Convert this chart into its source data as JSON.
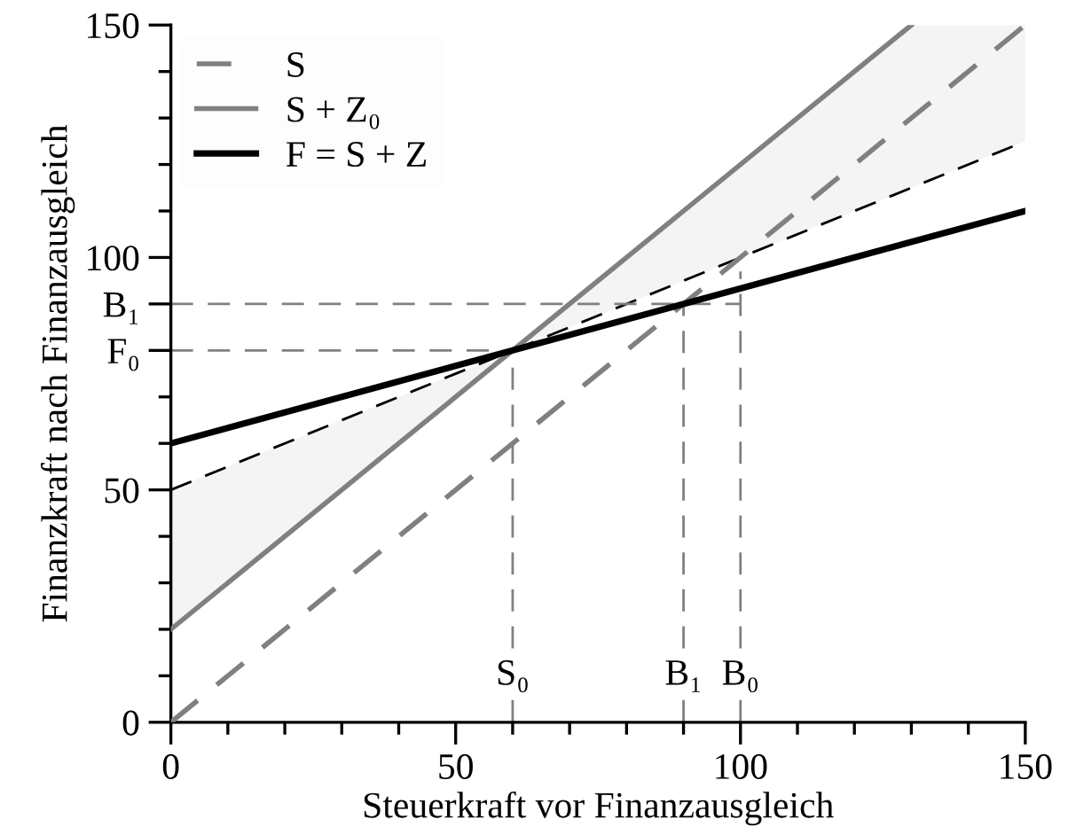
{
  "chart_data": {
    "type": "line",
    "xlabel": "Steuerkraft vor Finanzausgleich",
    "ylabel": "Finanzkraft nach Finanzausgleich",
    "xlim": [
      0,
      150
    ],
    "ylim": [
      0,
      150
    ],
    "xticks": [
      0,
      {
        "value": 10,
        "label": null
      },
      {
        "value": 20,
        "label": null
      },
      {
        "value": 30,
        "label": null
      },
      {
        "value": 40,
        "label": null
      },
      50,
      {
        "value": 60,
        "label": null
      },
      {
        "value": 70,
        "label": null
      },
      {
        "value": 80,
        "label": null
      },
      {
        "value": 90,
        "label": null
      },
      100,
      {
        "value": 110,
        "label": null
      },
      {
        "value": 120,
        "label": null
      },
      {
        "value": 130,
        "label": null
      },
      {
        "value": 140,
        "label": null
      },
      150
    ],
    "yticks": [
      0,
      {
        "value": 10,
        "label": null
      },
      {
        "value": 20,
        "label": null
      },
      {
        "value": 30,
        "label": null
      },
      {
        "value": 40,
        "label": null
      },
      50,
      {
        "value": 60,
        "label": null
      },
      {
        "value": 70,
        "label": null
      },
      {
        "value": 80,
        "label": "F₀"
      },
      {
        "value": 90,
        "label": "B₁"
      },
      100,
      {
        "value": 110,
        "label": null
      },
      {
        "value": 120,
        "label": null
      },
      {
        "value": 130,
        "label": null
      },
      {
        "value": 140,
        "label": null
      },
      150
    ],
    "grid": false,
    "legend": "top left",
    "marker": "none",
    "series": [
      {
        "name": "S",
        "color": "#808080",
        "line_style": "dashed",
        "x": [
          0,
          150
        ],
        "values": [
          0,
          150
        ]
      },
      {
        "name": "S + Z₀",
        "color": "#808080",
        "line_style": "solid",
        "x": [
          0,
          130
        ],
        "values": [
          20,
          150
        ]
      },
      {
        "name": "F = S + Z",
        "color": "#000000",
        "line_style": "solid",
        "x": [
          0,
          150
        ],
        "values": [
          60,
          110
        ]
      },
      {
        "color": "#000000",
        "line_style": "dashed",
        "x": [
          0,
          60,
          130,
          150
        ],
        "values": [
          50,
          80,
          115,
          125
        ],
        "lower": [
          20,
          80,
          115,
          125
        ],
        "upper": [
          50,
          80,
          150,
          150
        ]
      },
      {
        "color": "#808080",
        "line_style": "dashed",
        "x": [
          0,
          100
        ],
        "values": [
          90,
          90
        ]
      },
      {
        "color": "#808080",
        "line_style": "dashed",
        "x": [
          0,
          60
        ],
        "values": [
          80,
          80
        ]
      },
      {
        "color": "#808080",
        "line_style": "dashed",
        "x": [
          60,
          60
        ],
        "values": [
          0,
          80
        ]
      },
      {
        "color": "#808080",
        "line_style": "dashed",
        "x": [
          90,
          90
        ],
        "values": [
          0,
          90
        ]
      },
      {
        "color": "#808080",
        "line_style": "dashed",
        "x": [
          100,
          100
        ],
        "values": [
          0,
          97
        ]
      }
    ],
    "annotations": [
      {
        "text": "S₀",
        "x": 60,
        "y": 10
      },
      {
        "text": "B₁",
        "x": 90,
        "y": 10
      },
      {
        "text": "B₀",
        "x": 100,
        "y": 10
      }
    ]
  }
}
